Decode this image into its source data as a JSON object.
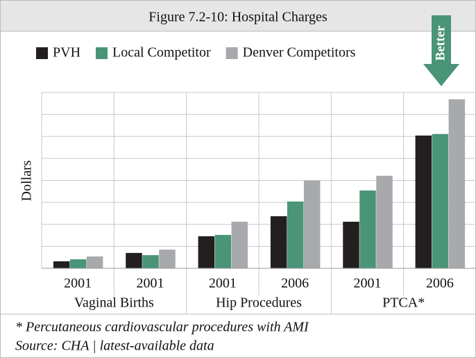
{
  "chart_data": {
    "type": "bar",
    "title": "Figure 7.2-10: Hospital Charges",
    "ylabel": "Dollars",
    "annotation": "Better",
    "footnotes": [
      "* Percutaneous cardiovascular procedures with AMI",
      "Source: CHA  |  latest-available data"
    ],
    "categories": [
      "2001",
      "2001",
      "2001",
      "2006",
      "2001",
      "2006"
    ],
    "groups": [
      {
        "name": "Vaginal Births",
        "count": 2
      },
      {
        "name": "Hip Procedures",
        "count": 2
      },
      {
        "name": "PTCA*",
        "count": 2
      }
    ],
    "series": [
      {
        "name": "PVH",
        "color": "#231f20",
        "values": [
          0.32,
          0.7,
          1.46,
          2.37,
          2.12,
          6.04
        ]
      },
      {
        "name": "Local Competitor",
        "color": "#4a9478",
        "values": [
          0.41,
          0.6,
          1.52,
          3.04,
          3.54,
          6.11
        ]
      },
      {
        "name": "Denver Competitors",
        "color": "#a7a9ac",
        "values": [
          0.54,
          0.85,
          2.12,
          3.99,
          4.21,
          7.69
        ]
      }
    ],
    "ylim": [
      0,
      8
    ],
    "yticks": [
      0,
      1,
      2,
      3,
      4,
      5,
      6,
      7,
      8
    ],
    "grid": true
  }
}
